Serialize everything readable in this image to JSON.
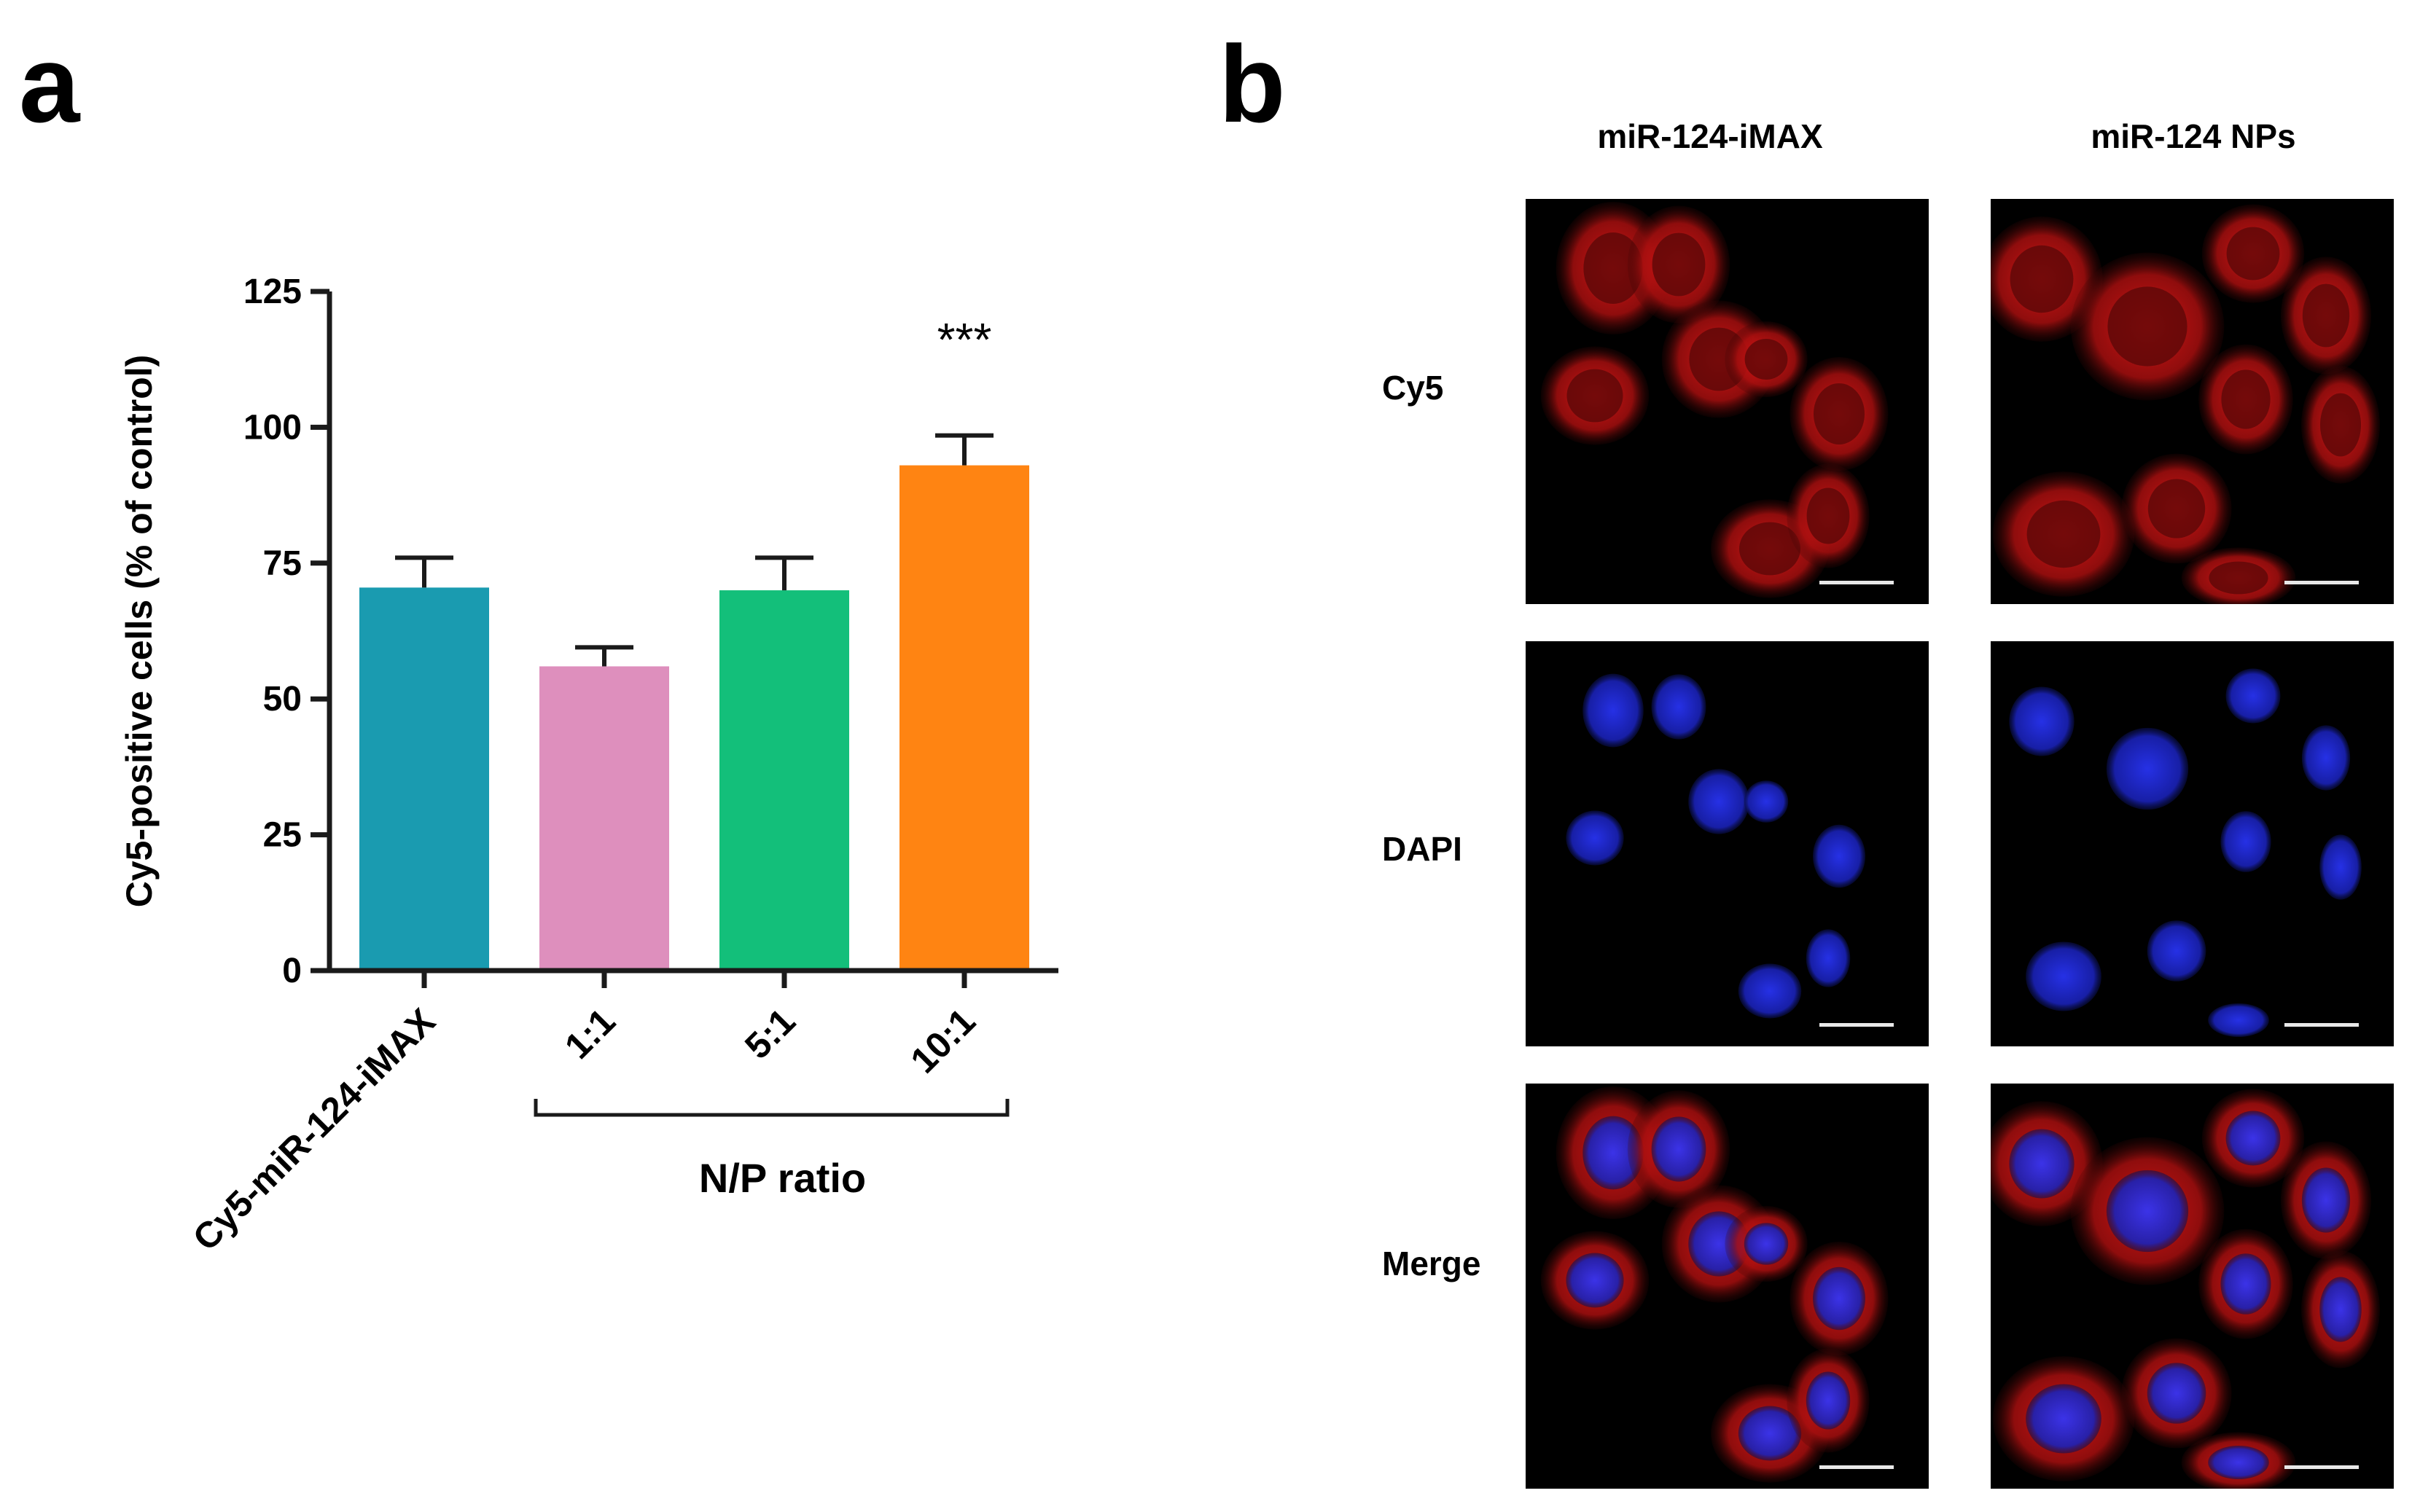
{
  "panels": {
    "a_label": "a",
    "b_label": "b"
  },
  "chart_data": {
    "type": "bar",
    "categories": [
      "Cy5-miR-124-iMAX",
      "1:1",
      "5:1",
      "10:1"
    ],
    "values": [
      70.5,
      56,
      70,
      93
    ],
    "errors": [
      5.5,
      3.5,
      6,
      5.5
    ],
    "colors": [
      "#1a9bb0",
      "#de8fbd",
      "#13bf7a",
      "#ff8412"
    ],
    "ylabel": "Cy5-positive cells (% of control)",
    "xlabel": "",
    "group_label": "N/P ratio",
    "ylim": [
      0,
      125
    ],
    "yticks": [
      "0",
      "25",
      "50",
      "75",
      "100",
      "125"
    ],
    "annotations": [
      {
        "category": "10:1",
        "text": "***"
      }
    ],
    "grid": false,
    "legend": "none"
  },
  "micrographs": {
    "columns": [
      "miR-124-iMAX",
      "miR-124 NPs"
    ],
    "rows": [
      "Cy5",
      "DAPI",
      "Merge"
    ]
  }
}
